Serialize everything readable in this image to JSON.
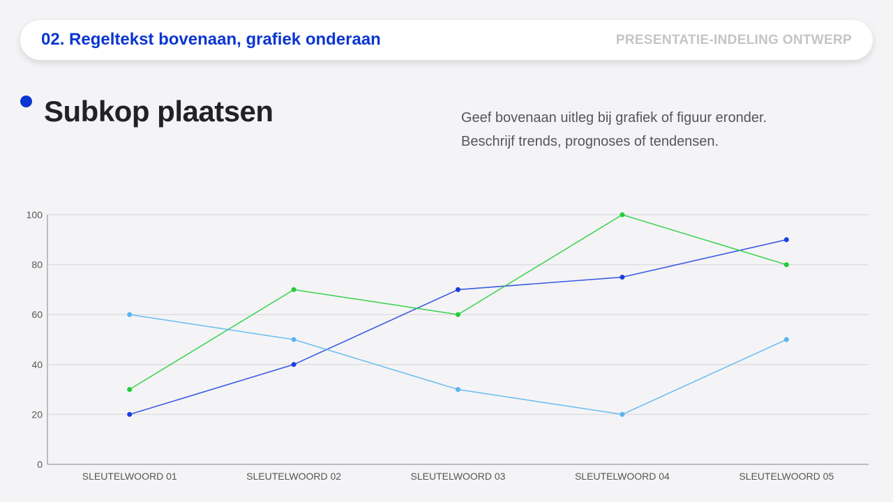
{
  "header": {
    "title": "02. Regeltekst bovenaan, grafiek onderaan",
    "right_label": "PRESENTATIE-INDELING ONTWERP"
  },
  "subhead": "Subkop plaatsen",
  "description": {
    "line1": "Geef bovenaan uitleg bij grafiek of figuur eronder.",
    "line2": "Beschrijf trends, prognoses of tendensen."
  },
  "colors": {
    "accent": "#0a35d0"
  },
  "chart_data": {
    "type": "line",
    "categories": [
      "SLEUTELWOORD 01",
      "SLEUTELWOORD 02",
      "SLEUTELWOORD 03",
      "SLEUTELWOORD 04",
      "SLEUTELWOORD 05"
    ],
    "series": [
      {
        "color": "#1a3fe0",
        "values": [
          20,
          40,
          70,
          75,
          90
        ]
      },
      {
        "color": "#22cc3a",
        "values": [
          30,
          70,
          60,
          100,
          80
        ]
      },
      {
        "color": "#5ab4f0",
        "values": [
          60,
          50,
          30,
          20,
          50
        ]
      }
    ],
    "ylim": [
      0,
      100
    ],
    "yticks": [
      0,
      20,
      40,
      60,
      80,
      100
    ],
    "grid": true,
    "legend": "none"
  }
}
